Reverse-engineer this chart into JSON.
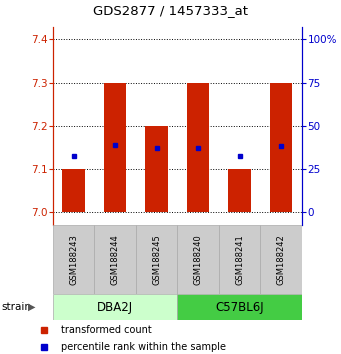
{
  "title": "GDS2877 / 1457333_at",
  "samples": [
    "GSM188243",
    "GSM188244",
    "GSM188245",
    "GSM188240",
    "GSM188241",
    "GSM188242"
  ],
  "groups": [
    {
      "name": "DBA2J",
      "samples": [
        0,
        1,
        2
      ]
    },
    {
      "name": "C57BL6J",
      "samples": [
        3,
        4,
        5
      ]
    }
  ],
  "bar_values": [
    7.1,
    7.3,
    7.2,
    7.3,
    7.1,
    7.3
  ],
  "bar_base": 7.0,
  "percentile_values": [
    7.13,
    7.155,
    7.148,
    7.148,
    7.13,
    7.152
  ],
  "ylim_left": [
    6.97,
    7.43
  ],
  "yticks_left": [
    7.0,
    7.1,
    7.2,
    7.3,
    7.4
  ],
  "bar_color": "#cc2200",
  "percentile_color": "#0000cc",
  "group_label_bg1": "#ccffcc",
  "group_label_bg2": "#44cc44",
  "sample_box_color": "#cccccc",
  "strain_label": "strain",
  "legend_red_label": "transformed count",
  "legend_blue_label": "percentile rank within the sample",
  "bar_width": 0.55,
  "title_fontsize": 9.5,
  "tick_fontsize": 7.5,
  "sample_fontsize": 6.0,
  "group_fontsize": 8.5,
  "legend_fontsize": 7.0,
  "strain_fontsize": 7.5
}
